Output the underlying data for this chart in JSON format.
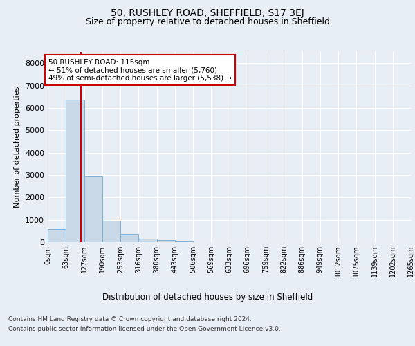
{
  "title": "50, RUSHLEY ROAD, SHEFFIELD, S17 3EJ",
  "subtitle": "Size of property relative to detached houses in Sheffield",
  "xlabel": "Distribution of detached houses by size in Sheffield",
  "ylabel": "Number of detached properties",
  "footer_line1": "Contains HM Land Registry data © Crown copyright and database right 2024.",
  "footer_line2": "Contains public sector information licensed under the Open Government Licence v3.0.",
  "annotation_line1": "50 RUSHLEY ROAD: 115sqm",
  "annotation_line2": "← 51% of detached houses are smaller (5,760)",
  "annotation_line3": "49% of semi-detached houses are larger (5,538) →",
  "property_size_sqm": 115,
  "bar_edges": [
    0,
    63,
    127,
    190,
    253,
    316,
    380,
    443,
    506,
    569,
    633,
    696,
    759,
    822,
    886,
    949,
    1012,
    1075,
    1139,
    1202,
    1265
  ],
  "bar_heights": [
    580,
    6380,
    2950,
    970,
    360,
    160,
    105,
    60,
    0,
    0,
    0,
    0,
    0,
    0,
    0,
    0,
    0,
    0,
    0,
    0
  ],
  "bar_color": "#c9d9e8",
  "bar_edge_color": "#7bafd4",
  "vline_color": "#cc0000",
  "vline_x": 115,
  "ylim": [
    0,
    8500
  ],
  "yticks": [
    0,
    1000,
    2000,
    3000,
    4000,
    5000,
    6000,
    7000,
    8000
  ],
  "bg_color": "#e8eef5",
  "plot_bg_color": "#e8eef5",
  "grid_color": "#ffffff",
  "annotation_box_color": "#cc0000",
  "annotation_box_fill": "#ffffff"
}
